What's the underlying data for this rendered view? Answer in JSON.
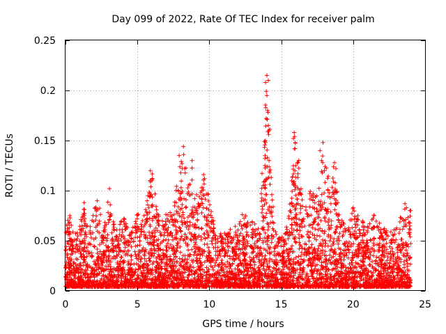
{
  "chart_data": {
    "type": "scatter",
    "title": "Day 099 of 2022, Rate Of TEC Index for receiver palm",
    "xlabel": "GPS time / hours",
    "ylabel": "ROTI / TECUs",
    "xlim": [
      0,
      25
    ],
    "ylim": [
      0,
      0.25
    ],
    "xticks": [
      0,
      5,
      10,
      15,
      20,
      25
    ],
    "xtick_labels": [
      "0",
      "5",
      "10",
      "15",
      "20",
      "25"
    ],
    "yticks": [
      0,
      0.05,
      0.1,
      0.15,
      0.2,
      0.25
    ],
    "ytick_labels": [
      "0",
      "0.05",
      "0.1",
      "0.15",
      "0.2",
      "0.25"
    ],
    "grid": true,
    "marker": "+",
    "color": "#ff0000",
    "series": [
      {
        "name": "ROTI",
        "envelope": {
          "x": [
            0.0,
            0.3,
            0.6,
            1.0,
            1.3,
            1.6,
            2.0,
            2.3,
            2.6,
            3.0,
            3.3,
            3.6,
            4.0,
            4.5,
            5.0,
            5.5,
            6.0,
            6.3,
            6.6,
            7.0,
            7.5,
            8.0,
            8.2,
            8.5,
            8.8,
            9.0,
            9.3,
            9.6,
            10.0,
            10.5,
            11.0,
            11.5,
            12.0,
            12.5,
            13.0,
            13.5,
            13.9,
            14.1,
            14.3,
            14.6,
            15.0,
            15.5,
            15.9,
            16.2,
            16.6,
            17.0,
            17.5,
            17.9,
            18.2,
            18.7,
            19.0,
            19.5,
            20.0,
            20.5,
            21.0,
            21.5,
            22.0,
            22.5,
            23.0,
            23.5,
            24.0
          ],
          "y_max": [
            0.07,
            0.075,
            0.06,
            0.07,
            0.088,
            0.065,
            0.085,
            0.09,
            0.06,
            0.102,
            0.07,
            0.06,
            0.075,
            0.06,
            0.08,
            0.078,
            0.122,
            0.09,
            0.07,
            0.078,
            0.085,
            0.135,
            0.144,
            0.11,
            0.13,
            0.1,
            0.095,
            0.118,
            0.092,
            0.055,
            0.06,
            0.062,
            0.07,
            0.082,
            0.07,
            0.06,
            0.215,
            0.21,
            0.12,
            0.06,
            0.052,
            0.07,
            0.158,
            0.14,
            0.08,
            0.1,
            0.095,
            0.148,
            0.115,
            0.13,
            0.085,
            0.065,
            0.083,
            0.075,
            0.065,
            0.078,
            0.065,
            0.06,
            0.065,
            0.087,
            0.08
          ]
        },
        "notable_points": [
          {
            "x": 0.15,
            "y": 0.062
          },
          {
            "x": 0.3,
            "y": 0.075
          },
          {
            "x": 1.3,
            "y": 0.088
          },
          {
            "x": 2.1,
            "y": 0.082
          },
          {
            "x": 2.2,
            "y": 0.09
          },
          {
            "x": 3.05,
            "y": 0.102
          },
          {
            "x": 5.9,
            "y": 0.12
          },
          {
            "x": 6.0,
            "y": 0.11
          },
          {
            "x": 7.7,
            "y": 0.088
          },
          {
            "x": 7.9,
            "y": 0.135
          },
          {
            "x": 8.1,
            "y": 0.127
          },
          {
            "x": 8.2,
            "y": 0.144
          },
          {
            "x": 8.8,
            "y": 0.13
          },
          {
            "x": 9.4,
            "y": 0.098
          },
          {
            "x": 9.6,
            "y": 0.116
          },
          {
            "x": 14.0,
            "y": 0.215
          },
          {
            "x": 14.1,
            "y": 0.21
          },
          {
            "x": 14.0,
            "y": 0.195
          },
          {
            "x": 14.05,
            "y": 0.18
          },
          {
            "x": 13.95,
            "y": 0.172
          },
          {
            "x": 14.1,
            "y": 0.165
          },
          {
            "x": 13.9,
            "y": 0.148
          },
          {
            "x": 14.15,
            "y": 0.13
          },
          {
            "x": 14.2,
            "y": 0.118
          },
          {
            "x": 15.9,
            "y": 0.158
          },
          {
            "x": 15.85,
            "y": 0.152
          },
          {
            "x": 15.95,
            "y": 0.142
          },
          {
            "x": 16.0,
            "y": 0.125
          },
          {
            "x": 17.7,
            "y": 0.14
          },
          {
            "x": 17.9,
            "y": 0.148
          },
          {
            "x": 17.8,
            "y": 0.13
          },
          {
            "x": 18.0,
            "y": 0.12
          },
          {
            "x": 18.7,
            "y": 0.128
          },
          {
            "x": 18.8,
            "y": 0.122
          },
          {
            "x": 18.7,
            "y": 0.092
          },
          {
            "x": 20.0,
            "y": 0.083
          },
          {
            "x": 23.6,
            "y": 0.087
          },
          {
            "x": 23.7,
            "y": 0.083
          },
          {
            "x": 24.0,
            "y": 0.08
          }
        ]
      }
    ]
  }
}
